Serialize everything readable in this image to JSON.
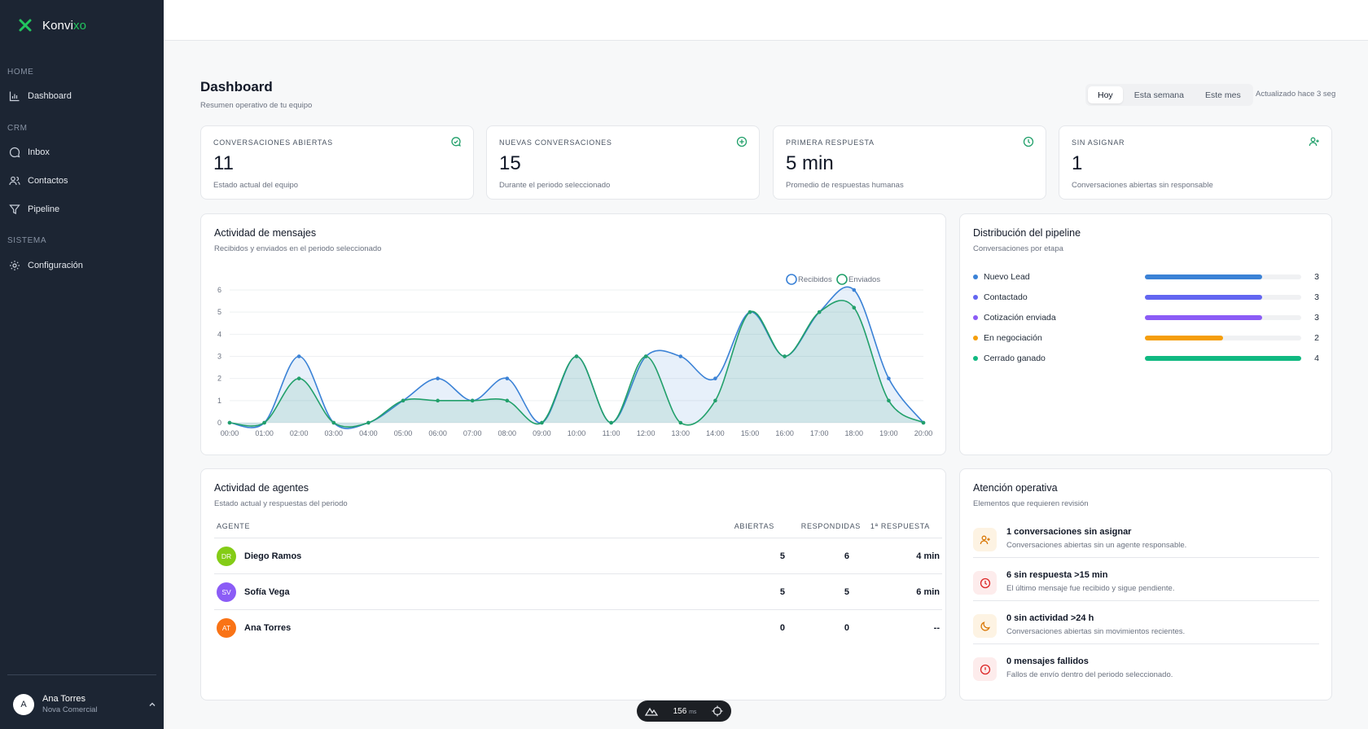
{
  "brand": {
    "name_main": "Konvi",
    "name_accent": "xo"
  },
  "sidebar": {
    "sections": [
      {
        "label": "HOME",
        "items": [
          {
            "label": "Dashboard",
            "icon": "bar-chart-icon"
          }
        ]
      },
      {
        "label": "CRM",
        "items": [
          {
            "label": "Inbox",
            "icon": "inbox-icon"
          },
          {
            "label": "Contactos",
            "icon": "users-icon"
          },
          {
            "label": "Pipeline",
            "icon": "filter-icon"
          }
        ]
      },
      {
        "label": "SISTEMA",
        "items": [
          {
            "label": "Configuración",
            "icon": "gear-icon"
          }
        ]
      }
    ],
    "user": {
      "initial": "A",
      "name": "Ana Torres",
      "org": "Nova Comercial"
    }
  },
  "header": {
    "title": "Dashboard",
    "subtitle": "Resumen operativo de tu equipo",
    "range_tabs": [
      "Hoy",
      "Esta semana",
      "Este mes"
    ],
    "active_tab": "Hoy",
    "updated": "Actualizado hace 3 seg"
  },
  "kpis": [
    {
      "label": "CONVERSACIONES ABIERTAS",
      "value": "11",
      "desc": "Estado actual del equipo",
      "icon": "chat-icon"
    },
    {
      "label": "NUEVAS CONVERSACIONES",
      "value": "15",
      "desc": "Durante el periodo seleccionado",
      "icon": "plus-circle-icon"
    },
    {
      "label": "PRIMERA RESPUESTA",
      "value": "5 min",
      "desc": "Promedio de respuestas humanas",
      "icon": "clock-icon"
    },
    {
      "label": "SIN ASIGNAR",
      "value": "1",
      "desc": "Conversaciones abiertas sin responsable",
      "icon": "user-plus-icon"
    }
  ],
  "activity": {
    "title": "Actividad de mensajes",
    "subtitle": "Recibidos y enviados en el periodo seleccionado"
  },
  "chart_data": {
    "type": "area",
    "categories": [
      "00:00",
      "01:00",
      "02:00",
      "03:00",
      "04:00",
      "05:00",
      "06:00",
      "07:00",
      "08:00",
      "09:00",
      "10:00",
      "11:00",
      "12:00",
      "13:00",
      "14:00",
      "15:00",
      "16:00",
      "17:00",
      "18:00",
      "19:00",
      "20:00"
    ],
    "series": [
      {
        "name": "Recibidos",
        "color": "#3b82d6",
        "values": [
          0,
          0,
          3,
          0,
          0,
          1,
          2,
          1,
          2,
          0,
          3,
          0,
          3,
          3,
          2,
          5,
          3,
          5,
          6,
          2,
          0
        ]
      },
      {
        "name": "Enviados",
        "color": "#22a06b",
        "values": [
          0,
          0,
          2,
          0,
          0,
          1,
          1,
          1,
          1,
          0,
          3,
          0,
          3,
          0,
          1,
          5,
          3,
          5,
          5.2,
          1,
          0
        ]
      }
    ],
    "ylim": [
      0,
      6
    ],
    "yticks": [
      0,
      1,
      2,
      3,
      4,
      5,
      6
    ],
    "legend": "top-right",
    "grid": true
  },
  "pipeline": {
    "title": "Distribución del pipeline",
    "subtitle": "Conversaciones por etapa",
    "max": 4,
    "stages": [
      {
        "name": "Nuevo Lead",
        "count": 3,
        "color": "#3b82d6"
      },
      {
        "name": "Contactado",
        "count": 3,
        "color": "#6366f1"
      },
      {
        "name": "Cotización enviada",
        "count": 3,
        "color": "#8b5cf6"
      },
      {
        "name": "En negociación",
        "count": 2,
        "color": "#f59e0b"
      },
      {
        "name": "Cerrado ganado",
        "count": 4,
        "color": "#10b981"
      }
    ]
  },
  "agents": {
    "title": "Actividad de agentes",
    "subtitle": "Estado actual y respuestas del periodo",
    "columns": [
      "AGENTE",
      "ABIERTAS",
      "RESPONDIDAS",
      "1ª RESPUESTA"
    ],
    "rows": [
      {
        "initials": "DR",
        "name": "Diego Ramos",
        "abiertas": "5",
        "respondidas": "6",
        "respuesta": "4 min",
        "color": "#84cc16"
      },
      {
        "initials": "SV",
        "name": "Sofía Vega",
        "abiertas": "5",
        "respondidas": "5",
        "respuesta": "6 min",
        "color": "#8b5cf6"
      },
      {
        "initials": "AT",
        "name": "Ana Torres",
        "abiertas": "0",
        "respondidas": "0",
        "respuesta": "--",
        "color": "#f97316"
      }
    ]
  },
  "attention": {
    "title": "Atención operativa",
    "subtitle": "Elementos que requieren revisión",
    "items": [
      {
        "title": "1 conversaciones sin asignar",
        "desc": "Conversaciones abiertas sin un agente responsable.",
        "icon": "user-plus-icon",
        "bg": "#fdf3e3",
        "fg": "#d97706"
      },
      {
        "title": "6 sin respuesta >15 min",
        "desc": "El último mensaje fue recibido y sigue pendiente.",
        "icon": "clock-icon",
        "bg": "#fdecec",
        "fg": "#dc2626"
      },
      {
        "title": "0 sin actividad >24 h",
        "desc": "Conversaciones abiertas sin movimientos recientes.",
        "icon": "moon-icon",
        "bg": "#fdf3e3",
        "fg": "#d97706"
      },
      {
        "title": "0 mensajes fallidos",
        "desc": "Fallos de envío dentro del periodo seleccionado.",
        "icon": "alert-circle-icon",
        "bg": "#fdecec",
        "fg": "#dc2626"
      }
    ]
  },
  "devtools": {
    "value": "156",
    "unit": "ms"
  }
}
